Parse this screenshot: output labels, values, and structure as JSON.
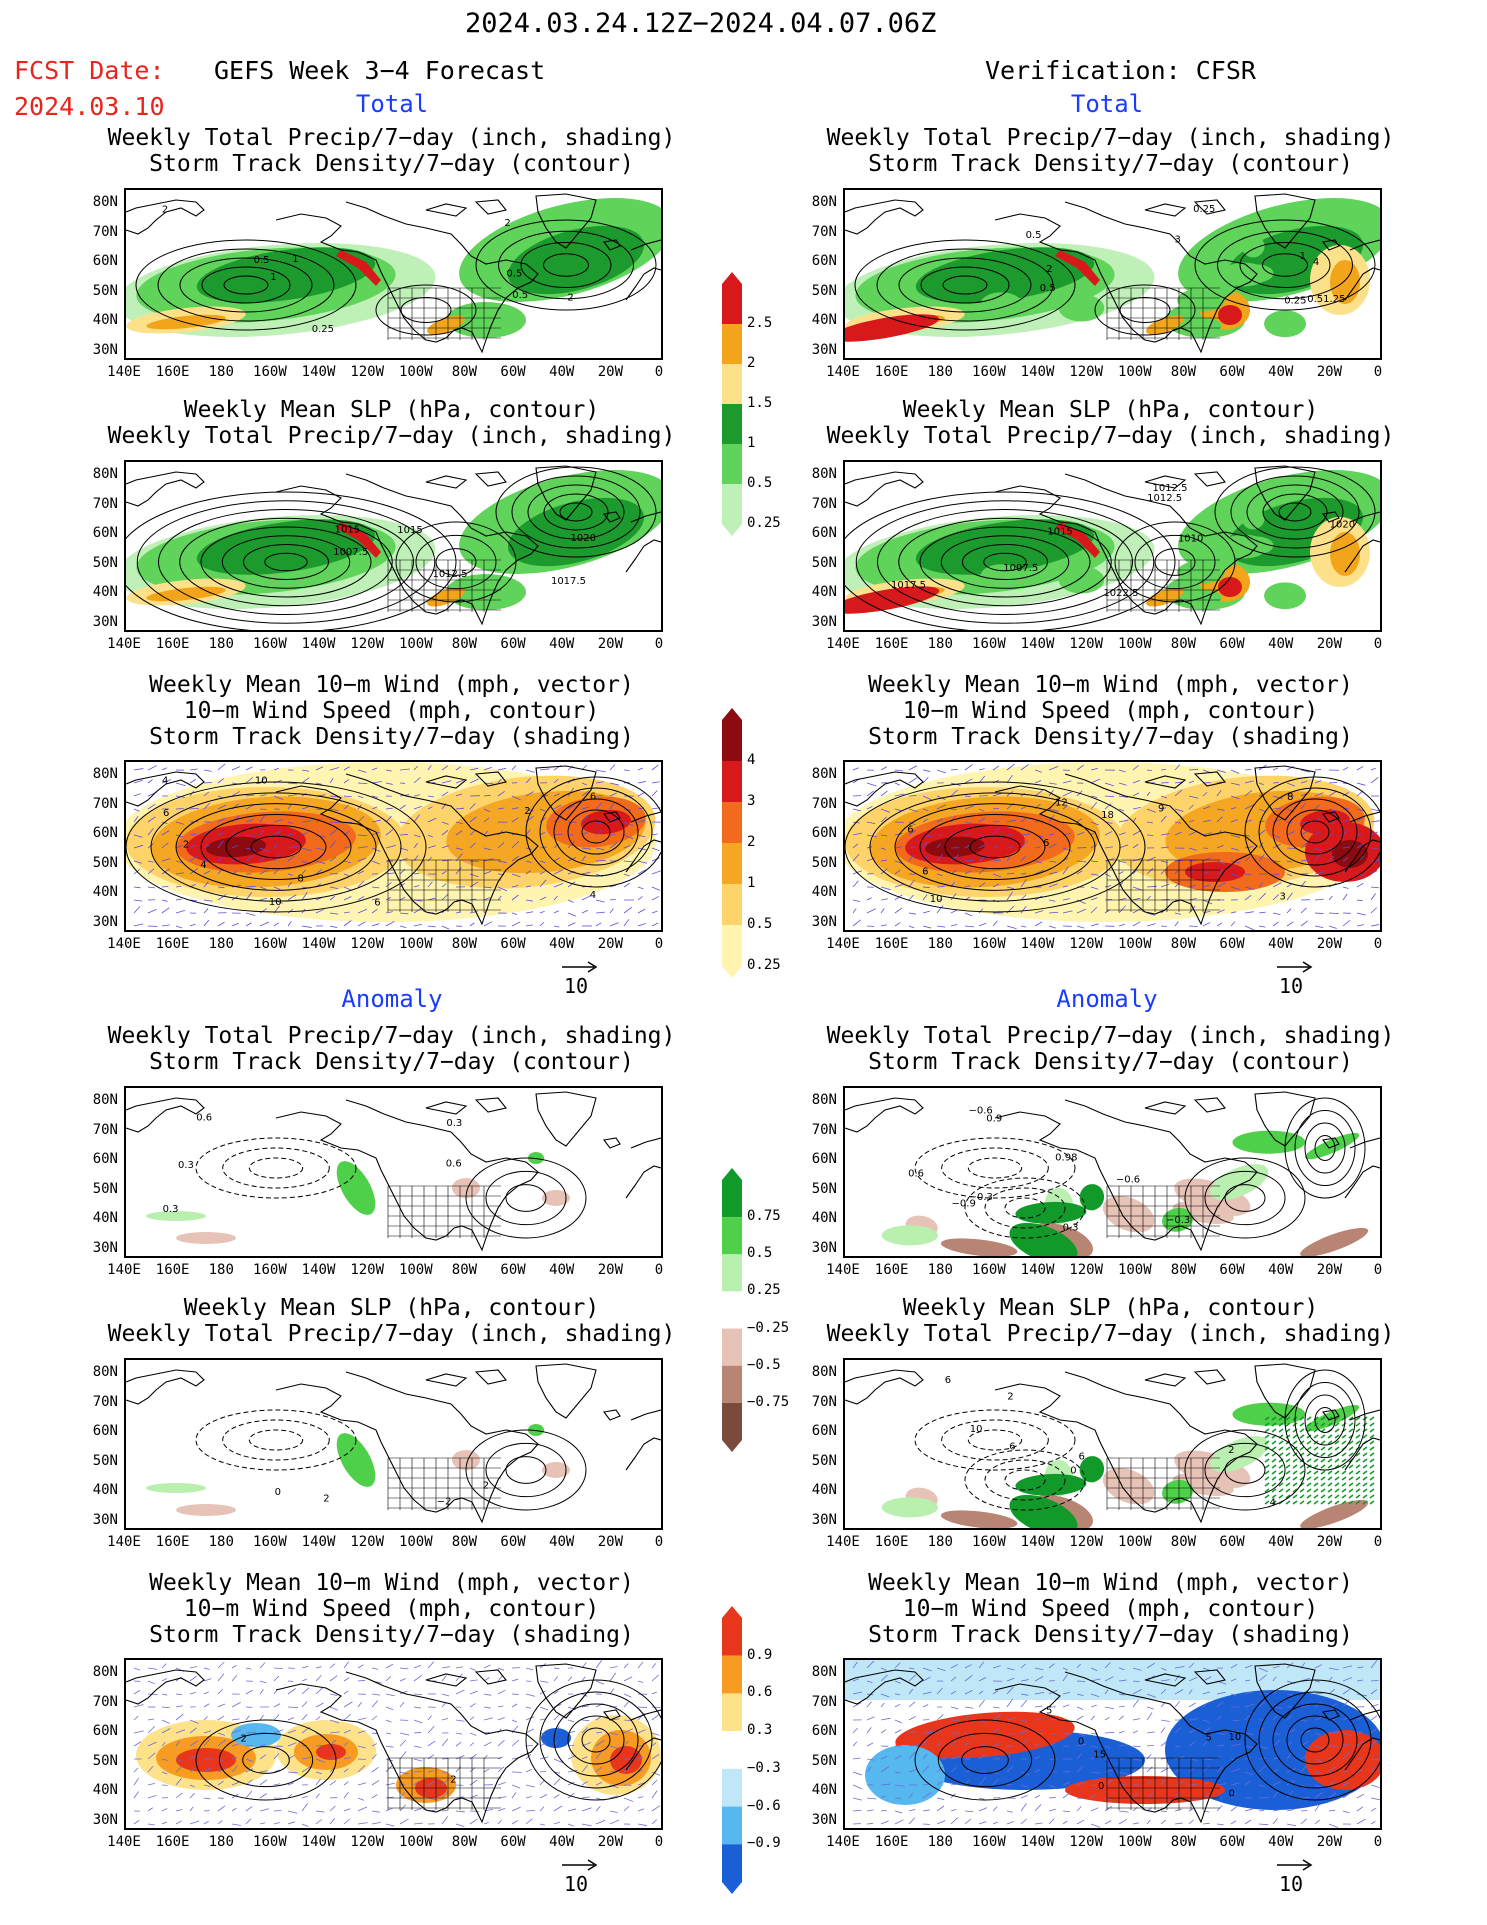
{
  "header": {
    "date_range": "2024.03.24.12Z−2024.04.07.06Z",
    "fcst_label": "FCST Date:",
    "fcst_date": "2024.03.10",
    "left_source": "GEFS Week 3−4 Forecast",
    "right_source": "Verification: CFSR",
    "total_label": "Total",
    "anomaly_label": "Anomaly"
  },
  "titles": {
    "precip_storm": "Weekly Total Precip/7−day (inch, shading)\nStorm Track Density/7−day (contour)",
    "slp_precip": "Weekly Mean SLP (hPa, contour)\nWeekly Total Precip/7−day (inch, shading)",
    "wind_storm": "Weekly Mean 10−m Wind (mph, vector)\n10−m Wind Speed (mph, contour)\nStorm Track Density/7−day (shading)"
  },
  "axes": {
    "lat_labels": [
      "80N",
      "70N",
      "60N",
      "50N",
      "40N",
      "30N"
    ],
    "lon_labels": [
      "140E",
      "160E",
      "180",
      "160W",
      "140W",
      "120W",
      "100W",
      "80W",
      "60W",
      "40W",
      "20W",
      "0"
    ]
  },
  "vector_reference": "10",
  "colorbars": {
    "precip_total": {
      "labels": [
        "2.5",
        "2",
        "1.5",
        "1",
        "0.5",
        "0.25"
      ],
      "colors": [
        "#d7191c",
        "#f2a51a",
        "#fde08a",
        "#1d9a2e",
        "#5fd35a",
        "#bff0b8"
      ]
    },
    "storm_total": {
      "labels": [
        "4",
        "3",
        "2",
        "1",
        "0.5",
        "0.25"
      ],
      "colors": [
        "#8b0b10",
        "#d7191c",
        "#f26a1b",
        "#f5a623",
        "#fdd36a",
        "#fff4b0"
      ]
    },
    "precip_anom": {
      "labels": [
        "0.75",
        "0.5",
        "0.25",
        "−0.25",
        "−0.5",
        "−0.75"
      ],
      "colors": [
        "#119a2a",
        "#4fd04a",
        "#b9f0b0",
        "#ffffff",
        "#e7c3b7",
        "#b88575",
        "#7a4a3a"
      ]
    },
    "storm_anom": {
      "labels": [
        "0.9",
        "0.6",
        "0.3",
        "−0.3",
        "−0.6",
        "−0.9"
      ],
      "colors": [
        "#e8361c",
        "#f79b23",
        "#fde28a",
        "#ffffff",
        "#bfe7f7",
        "#57b8f0",
        "#1a5fd6"
      ]
    }
  },
  "contour_labels": {
    "l_t1": [
      "1",
      "0.25",
      "2",
      "2",
      "0.5",
      "0.5",
      "0.5",
      "1",
      "2"
    ],
    "r_t1": [
      "0.5",
      "1",
      "3",
      "4",
      "2",
      "0.51.25",
      "0.5",
      "0.25",
      "0.25"
    ],
    "l_t2": [
      "1015",
      "1020",
      "1007.5",
      "1012.5",
      "1015",
      "1017.5"
    ],
    "r_t2": [
      "1012.5",
      "1022.5",
      "1007.5",
      "1010",
      "1020",
      "1017.5",
      "1015",
      "1012.5"
    ],
    "l_t3": [
      "2",
      "6",
      "4",
      "8",
      "6",
      "4",
      "10",
      "4",
      "10",
      "6",
      "2"
    ],
    "r_t3": [
      "3",
      "6",
      "8",
      "6",
      "9",
      "10",
      "12",
      "18",
      "6"
    ],
    "l_a1": [
      "0.6",
      "0.3",
      "0.6",
      "0.3",
      "0.3"
    ],
    "r_a1": [
      "−0.9",
      "−0.3",
      "−0.6",
      "0.6",
      "0.9",
      "−0.6",
      "0.3",
      "0.98",
      "−0.3"
    ],
    "l_a2": [
      "2",
      "−2",
      "0",
      "2"
    ],
    "r_a2": [
      "6",
      "10",
      "6",
      "2",
      "4",
      "2",
      "0",
      "6"
    ],
    "l_a3": [
      "2",
      "2"
    ],
    "r_a3": [
      "5",
      "0",
      "10",
      "15",
      "0",
      "5",
      "0"
    ]
  }
}
